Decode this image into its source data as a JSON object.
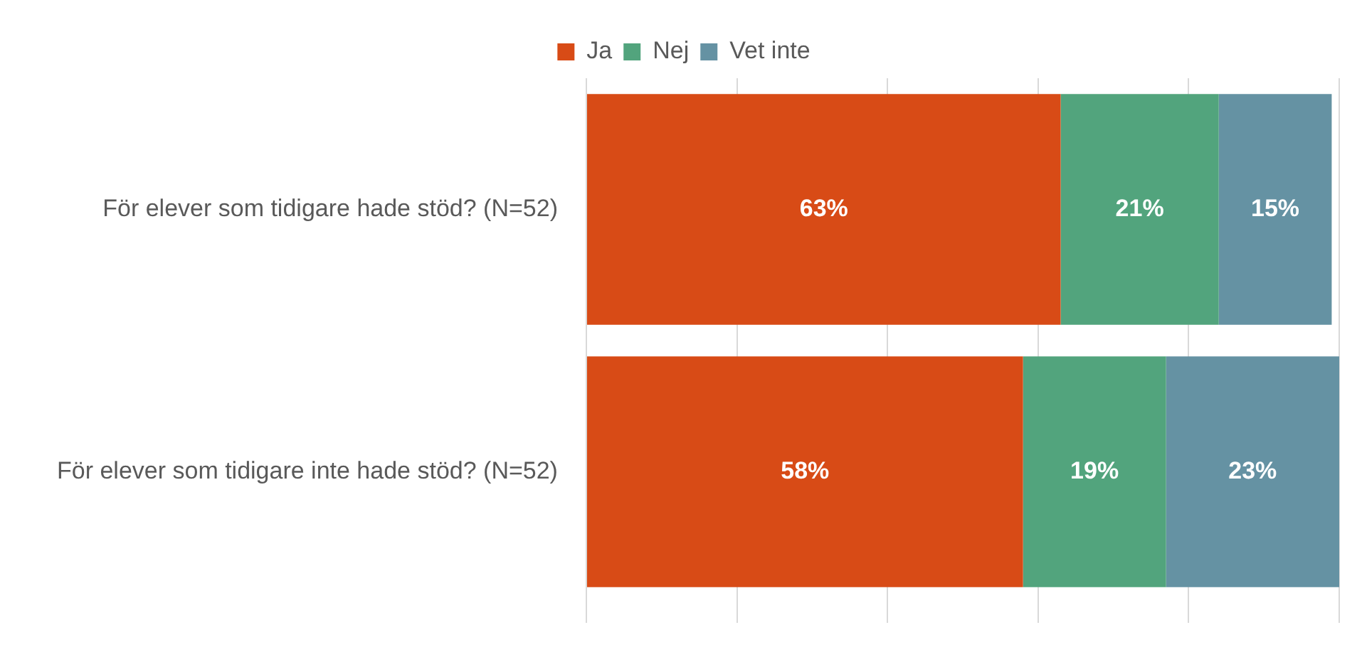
{
  "chart_data": {
    "type": "bar",
    "orientation": "horizontal",
    "stacked": true,
    "categories": [
      "För elever som tidigare hade stöd? (N=52)",
      "För elever som tidigare inte hade stöd? (N=52)"
    ],
    "series": [
      {
        "name": "Ja",
        "color": "#d84b16",
        "values": [
          63,
          58
        ],
        "value_labels": [
          "63%",
          "58%"
        ]
      },
      {
        "name": "Nej",
        "color": "#52a47d",
        "values": [
          21,
          19
        ],
        "value_labels": [
          "21%",
          "19%"
        ]
      },
      {
        "name": "Vet inte",
        "color": "#6592a3",
        "values": [
          15,
          23
        ],
        "value_labels": [
          "15%",
          "23%"
        ]
      }
    ],
    "xlim": [
      0,
      100
    ],
    "xticks": [
      {
        "value": 0,
        "label": null
      },
      {
        "value": 20,
        "label": null
      },
      {
        "value": 40,
        "label": null
      },
      {
        "value": 60,
        "label": null
      },
      {
        "value": 80,
        "label": null
      },
      {
        "value": 100,
        "label": null
      }
    ],
    "grid": "x",
    "legend": "top",
    "tick_labels": "y"
  }
}
